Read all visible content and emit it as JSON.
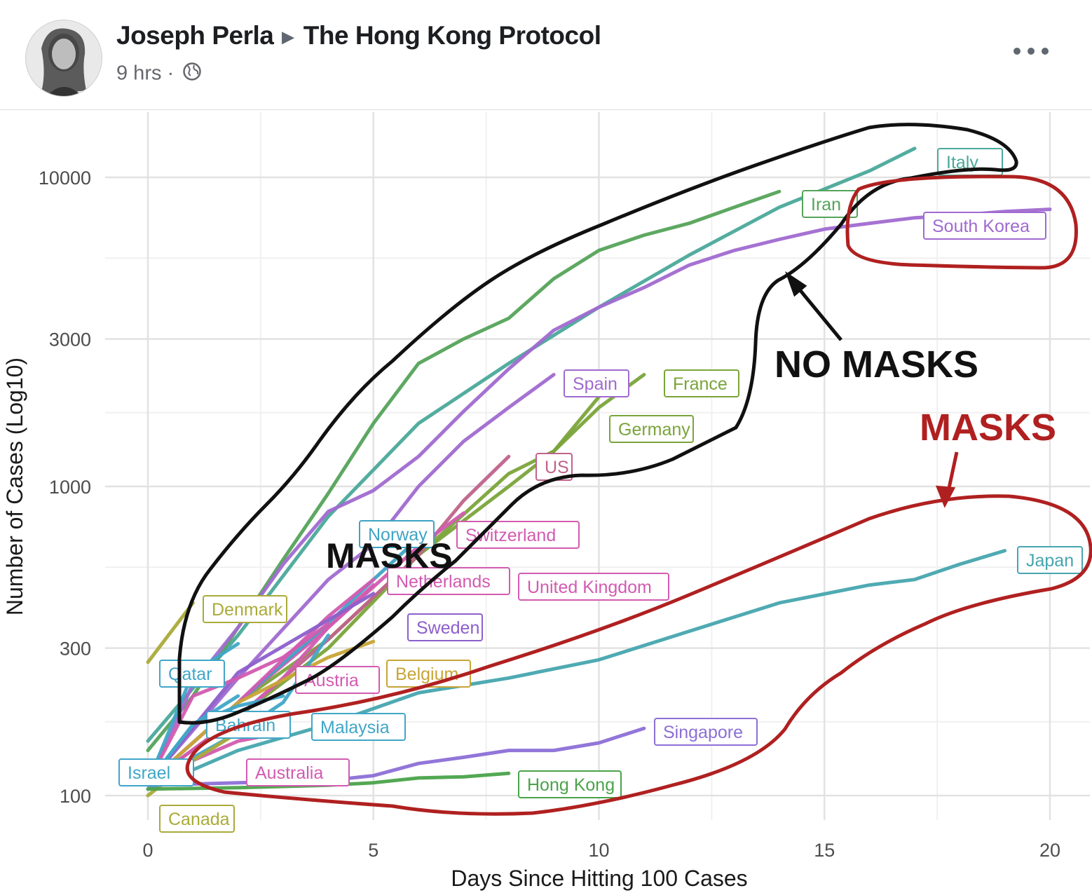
{
  "post": {
    "author": "Joseph Perla",
    "group": "The Hong Kong Protocol",
    "time": "9 hrs ·",
    "globe_icon": "globe-icon",
    "more_icon": "more-options-icon"
  },
  "chart_data": {
    "type": "line",
    "xlabel": "Days Since Hitting 100 Cases",
    "ylabel": "Number of Cases (Log10)",
    "xlim": [
      0,
      20
    ],
    "ylim": [
      100,
      20000
    ],
    "log_y": true,
    "grid": true,
    "x_ticks": [
      0,
      5,
      10,
      15,
      20
    ],
    "y_ticks": [
      100,
      300,
      1000,
      3000,
      10000
    ],
    "y_tick_labels": [
      "100",
      "300",
      "1000",
      "3000",
      "10000"
    ],
    "series": [
      {
        "name": "Italy",
        "color": "#4aa99a",
        "points": [
          [
            0,
            150
          ],
          [
            2,
            330
          ],
          [
            4,
            800
          ],
          [
            6,
            1600
          ],
          [
            8,
            2500
          ],
          [
            10,
            3800
          ],
          [
            12,
            5600
          ],
          [
            14,
            8000
          ],
          [
            16,
            10500
          ],
          [
            17,
            12400
          ]
        ]
      },
      {
        "name": "Iran",
        "color": "#55a35a",
        "points": [
          [
            0,
            140
          ],
          [
            1,
            210
          ],
          [
            2,
            350
          ],
          [
            3,
            580
          ],
          [
            4,
            950
          ],
          [
            5,
            1600
          ],
          [
            6,
            2500
          ],
          [
            7,
            3000
          ],
          [
            8,
            3500
          ],
          [
            9,
            4700
          ],
          [
            10,
            5800
          ],
          [
            11,
            6500
          ],
          [
            12,
            7100
          ],
          [
            13,
            8000
          ],
          [
            14,
            9000
          ]
        ]
      },
      {
        "name": "South Korea",
        "color": "#a06ad0",
        "points": [
          [
            0,
            110
          ],
          [
            1,
            230
          ],
          [
            2,
            350
          ],
          [
            3,
            560
          ],
          [
            4,
            830
          ],
          [
            5,
            970
          ],
          [
            6,
            1250
          ],
          [
            7,
            1750
          ],
          [
            8,
            2400
          ],
          [
            9,
            3200
          ],
          [
            10,
            3800
          ],
          [
            11,
            4400
          ],
          [
            12,
            5200
          ],
          [
            13,
            5800
          ],
          [
            14,
            6300
          ],
          [
            15,
            6800
          ],
          [
            16,
            7100
          ],
          [
            17,
            7400
          ],
          [
            18,
            7550
          ],
          [
            19,
            7750
          ],
          [
            20,
            7880
          ]
        ]
      },
      {
        "name": "Spain",
        "color": "#a06ad0",
        "points": [
          [
            0,
            110
          ],
          [
            2,
            240
          ],
          [
            4,
            500
          ],
          [
            5,
            650
          ],
          [
            6,
            1000
          ],
          [
            7,
            1400
          ],
          [
            8,
            1800
          ],
          [
            9,
            2300
          ]
        ]
      },
      {
        "name": "France",
        "color": "#7aa43a",
        "points": [
          [
            0,
            110
          ],
          [
            2,
            200
          ],
          [
            4,
            320
          ],
          [
            6,
            600
          ],
          [
            8,
            1100
          ],
          [
            9,
            1300
          ],
          [
            10,
            1800
          ],
          [
            11,
            2300
          ]
        ]
      },
      {
        "name": "Germany",
        "color": "#7aa43a",
        "points": [
          [
            0,
            110
          ],
          [
            2,
            180
          ],
          [
            4,
            300
          ],
          [
            6,
            600
          ],
          [
            8,
            1000
          ],
          [
            9,
            1300
          ],
          [
            10,
            1950
          ]
        ]
      },
      {
        "name": "US",
        "color": "#c0638a",
        "points": [
          [
            0,
            110
          ],
          [
            2,
            180
          ],
          [
            4,
            320
          ],
          [
            6,
            600
          ],
          [
            7,
            900
          ],
          [
            8,
            1250
          ]
        ]
      },
      {
        "name": "Switzerland",
        "color": "#d25bb0",
        "points": [
          [
            0,
            110
          ],
          [
            2,
            200
          ],
          [
            4,
            350
          ],
          [
            6,
            640
          ],
          [
            7,
            820
          ]
        ]
      },
      {
        "name": "Norway",
        "color": "#3fa3c4",
        "points": [
          [
            0,
            110
          ],
          [
            2,
            200
          ],
          [
            4,
            360
          ],
          [
            5,
            500
          ],
          [
            6,
            680
          ]
        ]
      },
      {
        "name": "Netherlands",
        "color": "#d25bb0",
        "points": [
          [
            0,
            110
          ],
          [
            2,
            200
          ],
          [
            4,
            380
          ],
          [
            5,
            500
          ]
        ]
      },
      {
        "name": "United Kingdom",
        "color": "#d25bb0",
        "points": [
          [
            0,
            110
          ],
          [
            2,
            180
          ],
          [
            3,
            240
          ],
          [
            4,
            350
          ],
          [
            5,
            480
          ]
        ]
      },
      {
        "name": "Sweden",
        "color": "#8c5fcb",
        "points": [
          [
            0,
            110
          ],
          [
            2,
            250
          ],
          [
            4,
            370
          ],
          [
            5,
            450
          ]
        ]
      },
      {
        "name": "Denmark",
        "color": "#aaaa3a",
        "points": [
          [
            0,
            270
          ],
          [
            1,
            420
          ]
        ]
      },
      {
        "name": "Qatar",
        "color": "#40a6c8",
        "points": [
          [
            0,
            110
          ],
          [
            1,
            250
          ],
          [
            2,
            310
          ]
        ]
      },
      {
        "name": "Austria",
        "color": "#d25bb0",
        "points": [
          [
            0,
            110
          ],
          [
            1,
            210
          ],
          [
            2,
            240
          ],
          [
            3,
            280
          ],
          [
            4,
            360
          ]
        ]
      },
      {
        "name": "Belgium",
        "color": "#c7a536",
        "points": [
          [
            0,
            110
          ],
          [
            2,
            200
          ],
          [
            4,
            280
          ],
          [
            5,
            315
          ]
        ]
      },
      {
        "name": "Bahrain",
        "color": "#40a6c8",
        "points": [
          [
            0,
            110
          ],
          [
            1,
            170
          ],
          [
            2,
            195
          ],
          [
            3,
            210
          ]
        ]
      },
      {
        "name": "Malaysia",
        "color": "#40a6c8",
        "points": [
          [
            0,
            110
          ],
          [
            2,
            160
          ],
          [
            3,
            200
          ],
          [
            4,
            330
          ]
        ]
      },
      {
        "name": "Israel",
        "color": "#40a6c8",
        "points": [
          [
            0,
            110
          ],
          [
            1,
            170
          ],
          [
            2,
            210
          ]
        ]
      },
      {
        "name": "Australia",
        "color": "#d25bb0",
        "points": [
          [
            0,
            110
          ],
          [
            1,
            130
          ],
          [
            2,
            150
          ],
          [
            3,
            160
          ]
        ]
      },
      {
        "name": "Canada",
        "color": "#aaaa3a",
        "points": [
          [
            0,
            100
          ],
          [
            1,
            130
          ],
          [
            2,
            160
          ]
        ]
      },
      {
        "name": "Japan",
        "color": "#46a5ae",
        "points": [
          [
            0,
            105
          ],
          [
            2,
            140
          ],
          [
            4,
            170
          ],
          [
            6,
            215
          ],
          [
            8,
            240
          ],
          [
            10,
            275
          ],
          [
            12,
            340
          ],
          [
            14,
            420
          ],
          [
            16,
            480
          ],
          [
            17,
            500
          ],
          [
            18,
            560
          ],
          [
            19,
            620
          ]
        ]
      },
      {
        "name": "Singapore",
        "color": "#8c6fd6",
        "points": [
          [
            0,
            108
          ],
          [
            2,
            110
          ],
          [
            4,
            112
          ],
          [
            5,
            116
          ],
          [
            6,
            127
          ],
          [
            7,
            133
          ],
          [
            8,
            140
          ],
          [
            9,
            140
          ],
          [
            10,
            148
          ],
          [
            11,
            165
          ]
        ]
      },
      {
        "name": "Hong Kong",
        "color": "#4aa34a",
        "points": [
          [
            0,
            105
          ],
          [
            2,
            106
          ],
          [
            3,
            107
          ],
          [
            4,
            108
          ],
          [
            5,
            110
          ],
          [
            6,
            114
          ],
          [
            7,
            115
          ],
          [
            8,
            118
          ]
        ]
      }
    ],
    "annotations": {
      "no_masks": "NO MASKS",
      "masks_red": "MASKS",
      "masks_black": "MASKS"
    }
  }
}
